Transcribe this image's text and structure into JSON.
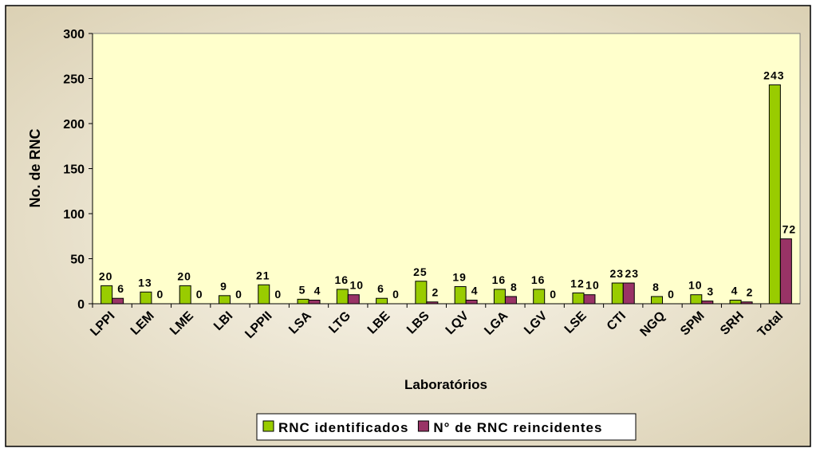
{
  "chart_data": {
    "type": "bar",
    "x_label": "Laboratórios",
    "y_label": "No. de RNC",
    "categories": [
      "LPPI",
      "LEM",
      "LME",
      "LBI",
      "LPPII",
      "LSA",
      "LTG",
      "LBE",
      "LBS",
      "LQV",
      "LGA",
      "LGV",
      "LSE",
      "CTI",
      "NGQ",
      "SPM",
      "SRH",
      "Total"
    ],
    "series": [
      {
        "name": "RNC identificados",
        "color": "#99cc00",
        "values": [
          20,
          13,
          20,
          9,
          21,
          5,
          16,
          6,
          25,
          19,
          16,
          16,
          12,
          23,
          8,
          10,
          4,
          243
        ]
      },
      {
        "name": "N° de RNC reincidentes",
        "color": "#993366",
        "values": [
          6,
          0,
          0,
          0,
          0,
          4,
          10,
          0,
          2,
          4,
          8,
          0,
          10,
          23,
          0,
          3,
          2,
          72
        ]
      }
    ],
    "ylim": [
      0,
      300
    ],
    "yticks": [
      0,
      50,
      100,
      150,
      200,
      250,
      300
    ],
    "legend": "bottom"
  }
}
